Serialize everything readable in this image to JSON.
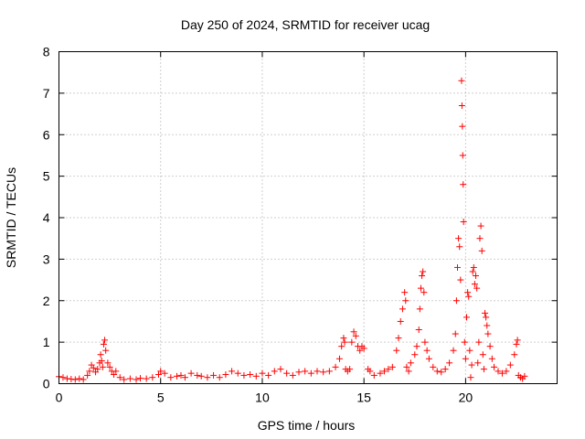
{
  "chart_data": {
    "type": "scatter",
    "title": "Day 250 of 2024, SRMTID for receiver ucag",
    "xlabel": "GPS time / hours",
    "ylabel": "SRMTID / TECUs",
    "xlim": [
      0,
      24.5
    ],
    "ylim": [
      0,
      8
    ],
    "xticks": [
      0,
      5,
      10,
      15,
      20
    ],
    "yticks": [
      0,
      1,
      2,
      3,
      4,
      5,
      6,
      7,
      8
    ],
    "grid": true,
    "marker": "+",
    "color": "#ff0000",
    "series": [
      {
        "name": "SRMTID",
        "points": [
          [
            0.0,
            0.17
          ],
          [
            0.2,
            0.15
          ],
          [
            0.4,
            0.12
          ],
          [
            0.6,
            0.11
          ],
          [
            0.8,
            0.1
          ],
          [
            1.0,
            0.12
          ],
          [
            1.2,
            0.1
          ],
          [
            1.4,
            0.2
          ],
          [
            1.5,
            0.3
          ],
          [
            1.6,
            0.45
          ],
          [
            1.7,
            0.38
          ],
          [
            1.8,
            0.28
          ],
          [
            1.9,
            0.35
          ],
          [
            2.0,
            0.5
          ],
          [
            2.05,
            0.7
          ],
          [
            2.1,
            0.55
          ],
          [
            2.15,
            0.4
          ],
          [
            2.2,
            0.95
          ],
          [
            2.25,
            1.05
          ],
          [
            2.3,
            0.8
          ],
          [
            2.4,
            0.5
          ],
          [
            2.5,
            0.4
          ],
          [
            2.6,
            0.3
          ],
          [
            2.7,
            0.22
          ],
          [
            2.8,
            0.3
          ],
          [
            3.0,
            0.15
          ],
          [
            3.2,
            0.1
          ],
          [
            3.5,
            0.12
          ],
          [
            3.8,
            0.1
          ],
          [
            4.0,
            0.13
          ],
          [
            4.3,
            0.12
          ],
          [
            4.6,
            0.15
          ],
          [
            4.9,
            0.22
          ],
          [
            5.0,
            0.3
          ],
          [
            5.2,
            0.25
          ],
          [
            5.5,
            0.15
          ],
          [
            5.8,
            0.18
          ],
          [
            6.0,
            0.2
          ],
          [
            6.2,
            0.15
          ],
          [
            6.5,
            0.25
          ],
          [
            6.8,
            0.2
          ],
          [
            7.0,
            0.18
          ],
          [
            7.3,
            0.15
          ],
          [
            7.6,
            0.2
          ],
          [
            7.9,
            0.15
          ],
          [
            8.2,
            0.22
          ],
          [
            8.5,
            0.3
          ],
          [
            8.8,
            0.25
          ],
          [
            9.1,
            0.2
          ],
          [
            9.4,
            0.22
          ],
          [
            9.7,
            0.18
          ],
          [
            10.0,
            0.25
          ],
          [
            10.3,
            0.2
          ],
          [
            10.6,
            0.3
          ],
          [
            10.9,
            0.35
          ],
          [
            11.2,
            0.25
          ],
          [
            11.5,
            0.2
          ],
          [
            11.8,
            0.28
          ],
          [
            12.1,
            0.3
          ],
          [
            12.4,
            0.25
          ],
          [
            12.7,
            0.3
          ],
          [
            13.0,
            0.28
          ],
          [
            13.3,
            0.3
          ],
          [
            13.6,
            0.4
          ],
          [
            13.8,
            0.6
          ],
          [
            13.9,
            0.9
          ],
          [
            14.0,
            1.1
          ],
          [
            14.05,
            1.0
          ],
          [
            14.1,
            0.35
          ],
          [
            14.2,
            0.3
          ],
          [
            14.3,
            0.35
          ],
          [
            14.4,
            1.0
          ],
          [
            14.5,
            1.25
          ],
          [
            14.6,
            1.15
          ],
          [
            14.7,
            0.9
          ],
          [
            14.8,
            0.8
          ],
          [
            14.9,
            0.9
          ],
          [
            15.0,
            0.85
          ],
          [
            15.2,
            0.35
          ],
          [
            15.3,
            0.3
          ],
          [
            15.5,
            0.2
          ],
          [
            15.8,
            0.25
          ],
          [
            16.0,
            0.3
          ],
          [
            16.2,
            0.35
          ],
          [
            16.4,
            0.4
          ],
          [
            16.6,
            0.8
          ],
          [
            16.7,
            1.1
          ],
          [
            16.8,
            1.5
          ],
          [
            16.9,
            1.8
          ],
          [
            17.0,
            2.2
          ],
          [
            17.05,
            2.0
          ],
          [
            17.1,
            0.4
          ],
          [
            17.2,
            0.3
          ],
          [
            17.3,
            0.5
          ],
          [
            17.5,
            0.7
          ],
          [
            17.6,
            0.9
          ],
          [
            17.7,
            1.3
          ],
          [
            17.75,
            1.8
          ],
          [
            17.8,
            2.3
          ],
          [
            17.85,
            2.6
          ],
          [
            17.9,
            2.7
          ],
          [
            17.95,
            2.2
          ],
          [
            18.0,
            1.0
          ],
          [
            18.1,
            0.8
          ],
          [
            18.2,
            0.6
          ],
          [
            18.4,
            0.4
          ],
          [
            18.6,
            0.3
          ],
          [
            18.8,
            0.28
          ],
          [
            19.0,
            0.35
          ],
          [
            19.2,
            0.5
          ],
          [
            19.4,
            0.8
          ],
          [
            19.5,
            1.2
          ],
          [
            19.55,
            2.0
          ],
          [
            19.6,
            2.8
          ],
          [
            19.65,
            3.5
          ],
          [
            19.7,
            3.3
          ],
          [
            19.75,
            2.5
          ],
          [
            19.8,
            7.3
          ],
          [
            19.82,
            6.7
          ],
          [
            19.84,
            6.2
          ],
          [
            19.86,
            5.5
          ],
          [
            19.88,
            4.8
          ],
          [
            19.9,
            3.9
          ],
          [
            19.95,
            1.0
          ],
          [
            20.0,
            0.6
          ],
          [
            20.05,
            1.6
          ],
          [
            20.1,
            2.2
          ],
          [
            20.15,
            2.1
          ],
          [
            20.2,
            0.8
          ],
          [
            20.25,
            0.15
          ],
          [
            20.3,
            0.45
          ],
          [
            20.35,
            2.7
          ],
          [
            20.4,
            2.8
          ],
          [
            20.45,
            2.4
          ],
          [
            20.5,
            2.6
          ],
          [
            20.55,
            2.3
          ],
          [
            20.6,
            0.5
          ],
          [
            20.65,
            1.0
          ],
          [
            20.7,
            3.5
          ],
          [
            20.75,
            3.8
          ],
          [
            20.8,
            3.2
          ],
          [
            20.85,
            0.7
          ],
          [
            20.9,
            0.35
          ],
          [
            20.95,
            1.7
          ],
          [
            21.0,
            1.6
          ],
          [
            21.05,
            1.4
          ],
          [
            21.1,
            1.2
          ],
          [
            21.2,
            0.9
          ],
          [
            21.3,
            0.6
          ],
          [
            21.4,
            0.4
          ],
          [
            21.6,
            0.3
          ],
          [
            21.8,
            0.25
          ],
          [
            22.0,
            0.3
          ],
          [
            22.2,
            0.45
          ],
          [
            22.4,
            0.7
          ],
          [
            22.5,
            0.95
          ],
          [
            22.55,
            1.05
          ],
          [
            22.6,
            0.2
          ],
          [
            22.7,
            0.15
          ],
          [
            22.8,
            0.12
          ],
          [
            22.9,
            0.18
          ]
        ]
      }
    ]
  }
}
